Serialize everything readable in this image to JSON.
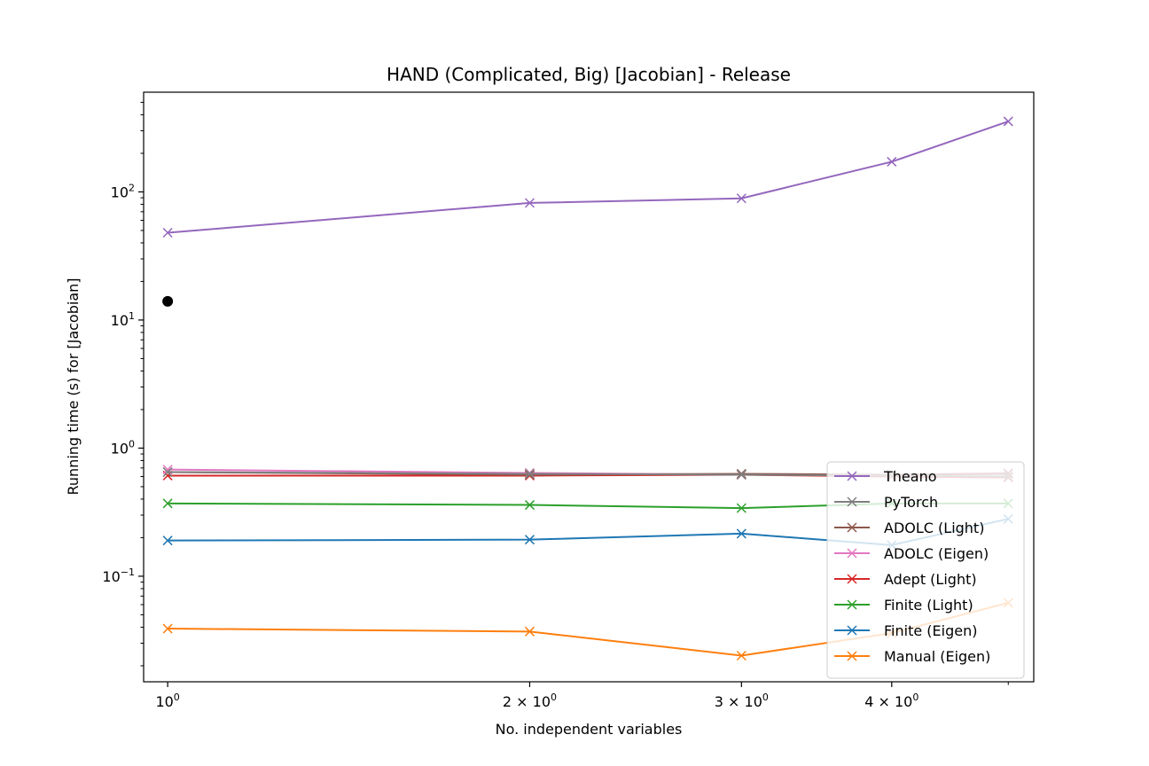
{
  "chart_data": {
    "type": "line",
    "title": "HAND (Complicated, Big) [Jacobian] - Release",
    "xlabel": "No. independent variables",
    "ylabel": "Running time (s) for [Jacobian]",
    "xscale": "log",
    "yscale": "log",
    "xlim": [
      0.955,
      5.25
    ],
    "ylim": [
      0.015,
      600
    ],
    "x_ticks": [
      {
        "value": 1,
        "base": "10",
        "exp": "0"
      },
      {
        "value": 2,
        "base": "2 × 10",
        "exp": "0"
      },
      {
        "value": 3,
        "base": "3 × 10",
        "exp": "0"
      },
      {
        "value": 4,
        "base": "4 × 10",
        "exp": "0"
      }
    ],
    "y_ticks": [
      {
        "value": 0.1,
        "base": "10",
        "exp": "−1"
      },
      {
        "value": 1,
        "base": "10",
        "exp": "0"
      },
      {
        "value": 10,
        "base": "10",
        "exp": "1"
      },
      {
        "value": 100,
        "base": "10",
        "exp": "2"
      }
    ],
    "x": [
      1,
      2,
      3,
      4,
      5
    ],
    "legend_position": "lower-right",
    "series": [
      {
        "name": "Theano",
        "color": "#9467bd",
        "values": [
          48,
          82,
          89,
          172,
          355
        ]
      },
      {
        "name": "PyTorch",
        "color": "#7f7f7f",
        "values": [
          0.65,
          0.63,
          0.62,
          0.61,
          0.6
        ]
      },
      {
        "name": "ADOLC (Light)",
        "color": "#8c564b",
        "values": [
          0.65,
          0.62,
          0.63,
          0.62,
          0.63
        ]
      },
      {
        "name": "ADOLC (Eigen)",
        "color": "#e377c2",
        "values": [
          0.68,
          0.64,
          0.62,
          0.62,
          0.64
        ]
      },
      {
        "name": "Adept (Light)",
        "color": "#d62728",
        "values": [
          0.61,
          0.61,
          0.62,
          0.6,
          0.59
        ]
      },
      {
        "name": "Finite (Light)",
        "color": "#2ca02c",
        "values": [
          0.37,
          0.36,
          0.34,
          0.37,
          0.37
        ]
      },
      {
        "name": "Finite (Eigen)",
        "color": "#1f77b4",
        "values": [
          0.19,
          0.193,
          0.215,
          0.175,
          0.28
        ]
      },
      {
        "name": "Manual (Eigen)",
        "color": "#ff7f0e",
        "values": [
          0.039,
          0.037,
          0.024,
          0.036,
          0.062
        ]
      }
    ],
    "extra_points": [
      {
        "x": 1,
        "y": 14,
        "color": "#000000"
      }
    ]
  }
}
